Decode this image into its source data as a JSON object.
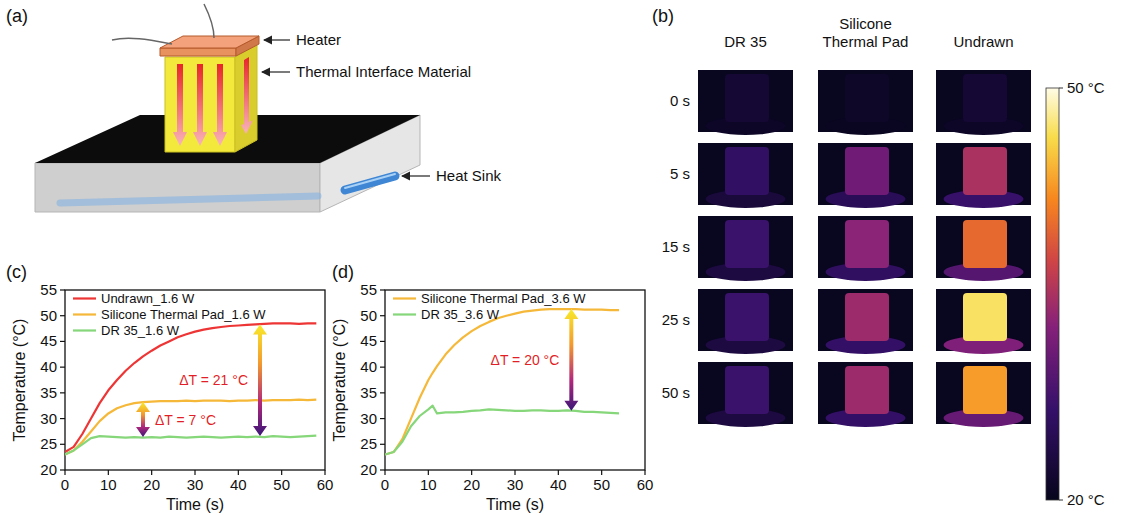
{
  "panels": {
    "a": "(a)",
    "b": "(b)",
    "c": "(c)",
    "d": "(d)"
  },
  "panel_a": {
    "labels": {
      "heater": "Heater",
      "tim": "Thermal Interface Material",
      "heat_sink": "Heat Sink"
    }
  },
  "panel_b": {
    "columns": [
      "DR 35",
      "Silicone Thermal Pad",
      "Undrawn"
    ],
    "rows": [
      "0 s",
      "5 s",
      "15 s",
      "25 s",
      "50 s"
    ],
    "cells": [
      [
        22,
        21,
        22
      ],
      [
        26,
        31,
        35
      ],
      [
        27,
        33,
        40
      ],
      [
        27,
        34,
        47
      ],
      [
        27,
        34,
        43
      ]
    ],
    "colorbar": {
      "range": [
        20,
        50
      ],
      "ticks": [
        {
          "value": 50,
          "label": "50 °C"
        },
        {
          "value": 20,
          "label": "20 °C"
        }
      ]
    }
  },
  "chart_data": [
    {
      "type": "line",
      "x_label": "Time (s)",
      "y_label": "Temperature (°C)",
      "x": [
        0,
        2,
        4,
        6,
        8,
        10,
        12,
        14,
        16,
        18,
        20,
        22,
        24,
        26,
        28,
        30,
        32,
        34,
        36,
        38,
        40,
        42,
        44,
        46,
        48,
        50,
        52,
        54,
        56,
        58
      ],
      "xlim": [
        0,
        60
      ],
      "xticks": [
        0,
        10,
        20,
        30,
        40,
        50,
        60
      ],
      "ylim": [
        20,
        55
      ],
      "yticks": [
        20,
        25,
        30,
        35,
        40,
        45,
        50,
        55
      ],
      "grid": false,
      "legend": "upper left",
      "series": [
        {
          "name": "Undrawn_1.6 W",
          "color": "#ee3535",
          "values": [
            23.5,
            24.5,
            27.0,
            30.0,
            33.0,
            35.5,
            37.5,
            39.3,
            40.8,
            42.1,
            43.2,
            44.2,
            45.0,
            45.8,
            46.4,
            46.9,
            47.3,
            47.6,
            47.8,
            48.0,
            48.1,
            48.2,
            48.3,
            48.4,
            48.5,
            48.5,
            48.5,
            48.4,
            48.5,
            48.5
          ]
        },
        {
          "name": "Silicone Thermal Pad_1.6 W",
          "color": "#f5b839",
          "values": [
            23.0,
            23.8,
            25.5,
            27.5,
            29.5,
            31.0,
            32.0,
            32.6,
            33.0,
            33.2,
            33.3,
            33.4,
            33.4,
            33.4,
            33.5,
            33.4,
            33.5,
            33.5,
            33.5,
            33.4,
            33.5,
            33.5,
            33.6,
            33.5,
            33.6,
            33.6,
            33.6,
            33.7,
            33.6,
            33.7
          ]
        },
        {
          "name": "DR 35_1.6 W",
          "color": "#86d67a",
          "values": [
            23.0,
            23.8,
            25.0,
            26.2,
            26.6,
            26.5,
            26.4,
            26.3,
            26.4,
            26.3,
            26.4,
            26.3,
            26.5,
            26.4,
            26.3,
            26.4,
            26.5,
            26.4,
            26.3,
            26.4,
            26.5,
            26.4,
            26.5,
            26.4,
            26.6,
            26.5,
            26.4,
            26.5,
            26.6,
            26.7
          ]
        }
      ],
      "annotations": [
        {
          "text": "ΔT = 21 °C",
          "x": 45,
          "y_from": 48.3,
          "y_to": 26.6
        },
        {
          "text": "ΔT = 7 °C",
          "x": 18,
          "y_from": 33.2,
          "y_to": 26.4
        }
      ]
    },
    {
      "type": "line",
      "x_label": "Time (s)",
      "y_label": "Temperature (°C)",
      "x": [
        0,
        2,
        4,
        6,
        8,
        10,
        11,
        12,
        14,
        16,
        18,
        20,
        22,
        24,
        26,
        28,
        30,
        32,
        34,
        36,
        38,
        40,
        42,
        44,
        46,
        48,
        50,
        52,
        54
      ],
      "xlim": [
        0,
        60
      ],
      "xticks": [
        0,
        10,
        20,
        30,
        40,
        50,
        60
      ],
      "ylim": [
        20,
        55
      ],
      "yticks": [
        20,
        25,
        30,
        35,
        40,
        45,
        50,
        55
      ],
      "grid": false,
      "legend": "upper left",
      "series": [
        {
          "name": "Silicone Thermal Pad_3.6 W",
          "color": "#f5b839",
          "values": [
            23.0,
            23.5,
            26.0,
            30.0,
            34.0,
            37.5,
            38.9,
            40.2,
            42.5,
            44.3,
            45.8,
            47.0,
            48.0,
            48.8,
            49.5,
            50.0,
            50.4,
            50.8,
            51.0,
            51.2,
            51.3,
            51.3,
            51.3,
            51.3,
            51.2,
            51.2,
            51.2,
            51.1,
            51.1
          ]
        },
        {
          "name": "DR 35_3.6 W",
          "color": "#86d67a",
          "values": [
            23.0,
            23.5,
            25.5,
            28.5,
            30.5,
            31.8,
            32.5,
            31.0,
            31.2,
            31.2,
            31.3,
            31.5,
            31.6,
            31.8,
            31.7,
            31.6,
            31.5,
            31.5,
            31.6,
            31.6,
            31.5,
            31.5,
            31.6,
            31.5,
            31.3,
            31.3,
            31.2,
            31.1,
            31.0
          ]
        }
      ],
      "annotations": [
        {
          "text": "ΔT = 20 °C",
          "x": 43,
          "y_from": 51.3,
          "y_to": 31.5
        }
      ]
    }
  ]
}
